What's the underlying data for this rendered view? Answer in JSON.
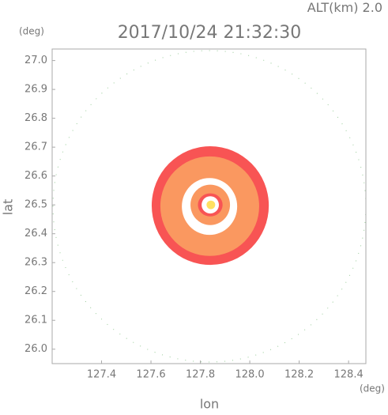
{
  "chart_data": {
    "type": "radar-rings",
    "altitude_label": "ALT(km)",
    "altitude": "2.0",
    "title": "2017/10/24 21:32:30",
    "y_unit": "(deg)",
    "x_unit": "(deg)",
    "y_label": "lat",
    "x_label": "lon",
    "xlim": [
      127.2,
      128.47
    ],
    "ylim": [
      25.95,
      27.04
    ],
    "xticks": [
      127.4,
      127.6,
      127.8,
      {
        "value": 128.0,
        "label": "128.0"
      },
      128.2,
      128.4
    ],
    "yticks": [
      {
        "value": 26.0,
        "label": "26.0"
      },
      26.1,
      26.2,
      26.3,
      26.4,
      26.5,
      26.6,
      26.7,
      26.8,
      26.9,
      {
        "value": 27.0,
        "label": "27.0"
      }
    ],
    "rings": [
      {
        "color": "#f85454",
        "x": [
          127.603,
          128.077
        ],
        "y": [
          26.292,
          26.703
        ]
      },
      {
        "color": "#fa9860",
        "x": [
          127.638,
          128.038
        ],
        "y": [
          26.323,
          26.668
        ]
      },
      {
        "color": "#ffffff",
        "x": [
          127.725,
          127.949
        ],
        "y": [
          26.396,
          26.593
        ]
      },
      {
        "color": "#fa9860",
        "x": [
          127.76,
          127.92
        ],
        "y": [
          26.43,
          26.57
        ]
      },
      {
        "color": "#f85454",
        "x": [
          127.79,
          127.89
        ],
        "y": [
          26.46,
          26.54
        ]
      },
      {
        "color": "#ffffff",
        "x": [
          127.805,
          127.875
        ],
        "y": [
          26.47,
          26.53
        ]
      },
      {
        "color": "#ffe060",
        "x": [
          127.825,
          127.86
        ],
        "y": [
          26.485,
          26.515
        ]
      }
    ]
  }
}
